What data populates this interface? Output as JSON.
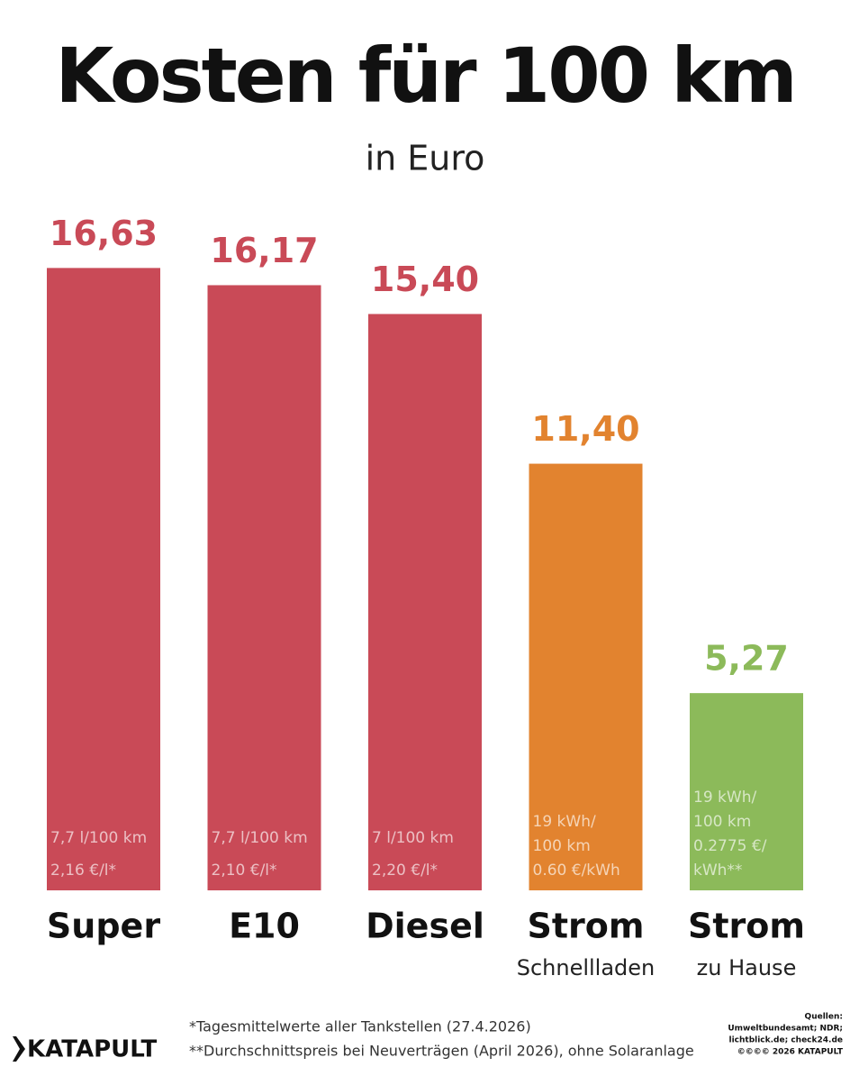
{
  "chart_data": {
    "type": "bar",
    "title": "Kosten für 100 km",
    "subtitle": "in Euro",
    "categories": [
      "Super",
      "E10",
      "Diesel",
      "Strom",
      "Strom"
    ],
    "category_sublabels": [
      null,
      null,
      null,
      "Schnellladen",
      "zu Hause"
    ],
    "values": [
      16.63,
      16.17,
      15.4,
      11.4,
      5.27
    ],
    "value_labels": [
      "16,63",
      "16,17",
      "15,40",
      "11,40",
      "5,27"
    ],
    "colors": [
      "#c94a57",
      "#c94a57",
      "#c94a57",
      "#e2832f",
      "#8cba5a"
    ],
    "notes": [
      [
        "7,7 l/100 km",
        "2,16 €/l*"
      ],
      [
        "7,7 l/100 km",
        "2,10 €/l*"
      ],
      [
        "7 l/100 km",
        "2,20 €/l*"
      ],
      [
        "19 kWh/",
        "100 km",
        "0.60 €/kWh"
      ],
      [
        "19 kWh/",
        "100 km",
        "0.2775 €/",
        "kWh**"
      ]
    ],
    "ylim": [
      0,
      17
    ],
    "footnotes": [
      "*Tagesmittelwerte aller Tankstellen (27.4.2026)",
      "**Durchschnittspreis bei Neuverträgen (April 2026), ohne Solaranlage"
    ],
    "sources": [
      "Quellen:",
      "Umweltbundesamt; NDR;",
      "lichtblick.de; check24.de",
      "©©©© 2026 KATAPULT"
    ],
    "logo": "KATAPULT"
  }
}
